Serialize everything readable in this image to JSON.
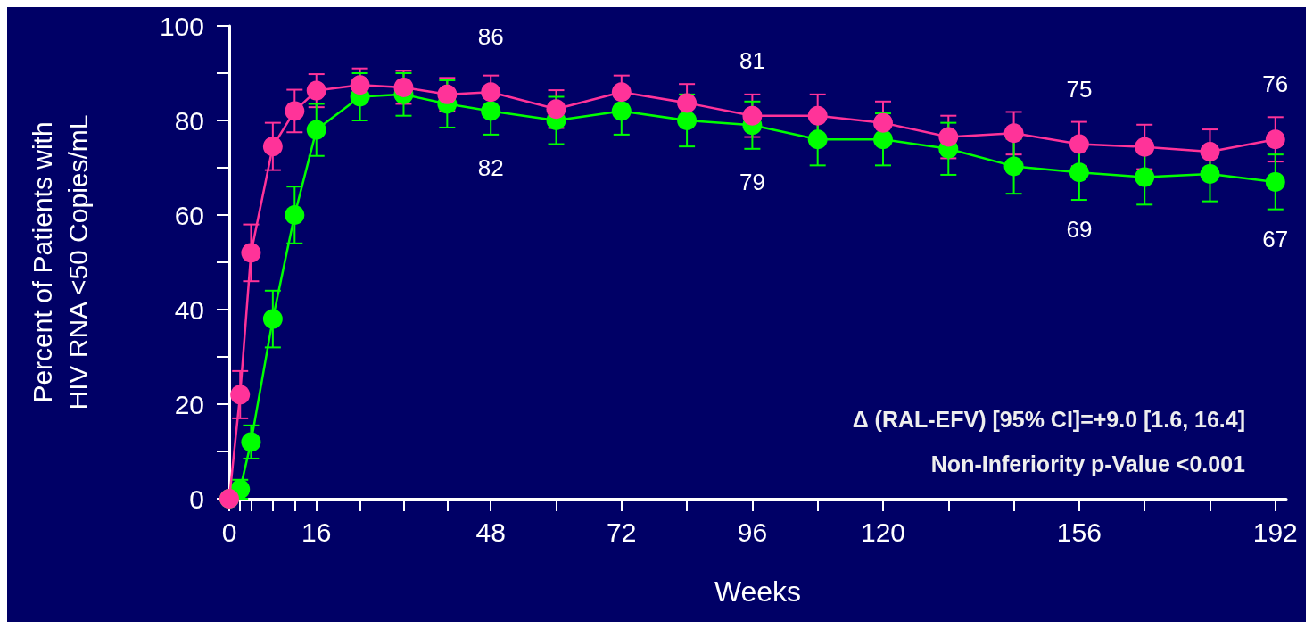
{
  "chart_data": {
    "type": "line",
    "xlabel": "Weeks",
    "ylabel": "Percent of Patients with\nHIV RNA <50 Copies/mL",
    "annotations": [
      "Δ (RAL-EFV) [95% CI]=+9.0 [1.6, 16.4]",
      "Non-Inferiority p-Value <0.001"
    ],
    "x": [
      0,
      2,
      4,
      8,
      12,
      16,
      24,
      32,
      40,
      48,
      60,
      72,
      84,
      96,
      108,
      120,
      132,
      144,
      156,
      168,
      180,
      192
    ],
    "series": [
      {
        "color": "#ff3399",
        "values": [
          0,
          22,
          52,
          74.5,
          82,
          86.3,
          87.5,
          87,
          85.5,
          86,
          82.4,
          86,
          83.7,
          81,
          81,
          79.5,
          76.5,
          77.3,
          75,
          74.4,
          73.4,
          76
        ],
        "errors": [
          null,
          5,
          6,
          5,
          4.5,
          3.5,
          3.5,
          3.5,
          3.5,
          3.5,
          4,
          3.5,
          4,
          4.5,
          4.5,
          4.5,
          4.5,
          4.5,
          4.7,
          4.7,
          4.7,
          4.7
        ],
        "value_labels": [
          null,
          null,
          null,
          null,
          null,
          null,
          null,
          null,
          null,
          "86",
          null,
          null,
          null,
          "81",
          null,
          null,
          null,
          null,
          "75",
          null,
          null,
          "76"
        ]
      },
      {
        "color": "#00ff00",
        "values": [
          0,
          2,
          12,
          38,
          60,
          78,
          85,
          85.5,
          83.5,
          82,
          80,
          82,
          80,
          79,
          76,
          76,
          74,
          70.3,
          69,
          68,
          68.7,
          67
        ],
        "errors": [
          null,
          2,
          3.5,
          6,
          6,
          5.5,
          5,
          4.5,
          5,
          5,
          5,
          5,
          5.5,
          5,
          5.5,
          5.5,
          5.5,
          5.8,
          5.8,
          5.8,
          5.8,
          5.8
        ],
        "value_labels": [
          null,
          null,
          null,
          null,
          null,
          null,
          null,
          null,
          null,
          "82",
          null,
          null,
          null,
          "79",
          null,
          null,
          null,
          null,
          "69",
          null,
          null,
          "67"
        ]
      }
    ],
    "xlim": [
      0,
      194
    ],
    "xticks": [
      0,
      {
        "value": 2,
        "label": null
      },
      {
        "value": 4,
        "label": null
      },
      {
        "value": 8,
        "label": null
      },
      {
        "value": 12,
        "label": null
      },
      16,
      {
        "value": 24,
        "label": null
      },
      {
        "value": 32,
        "label": null
      },
      {
        "value": 40,
        "label": null
      },
      48,
      {
        "value": 60,
        "label": null
      },
      72,
      {
        "value": 84,
        "label": null
      },
      96,
      {
        "value": 108,
        "label": null
      },
      120,
      {
        "value": 132,
        "label": null
      },
      {
        "value": 144,
        "label": null
      },
      156,
      {
        "value": 168,
        "label": null
      },
      {
        "value": 180,
        "label": null
      },
      192
    ],
    "ylim": [
      0,
      100
    ],
    "yticks": [
      0,
      {
        "value": 10,
        "label": null
      },
      20,
      {
        "value": 30,
        "label": null
      },
      40,
      {
        "value": 50,
        "label": null
      },
      60,
      {
        "value": 70,
        "label": null
      },
      80,
      {
        "value": 90,
        "label": null
      },
      100
    ],
    "marker": "circle",
    "line_style": "solid",
    "grid": false
  }
}
